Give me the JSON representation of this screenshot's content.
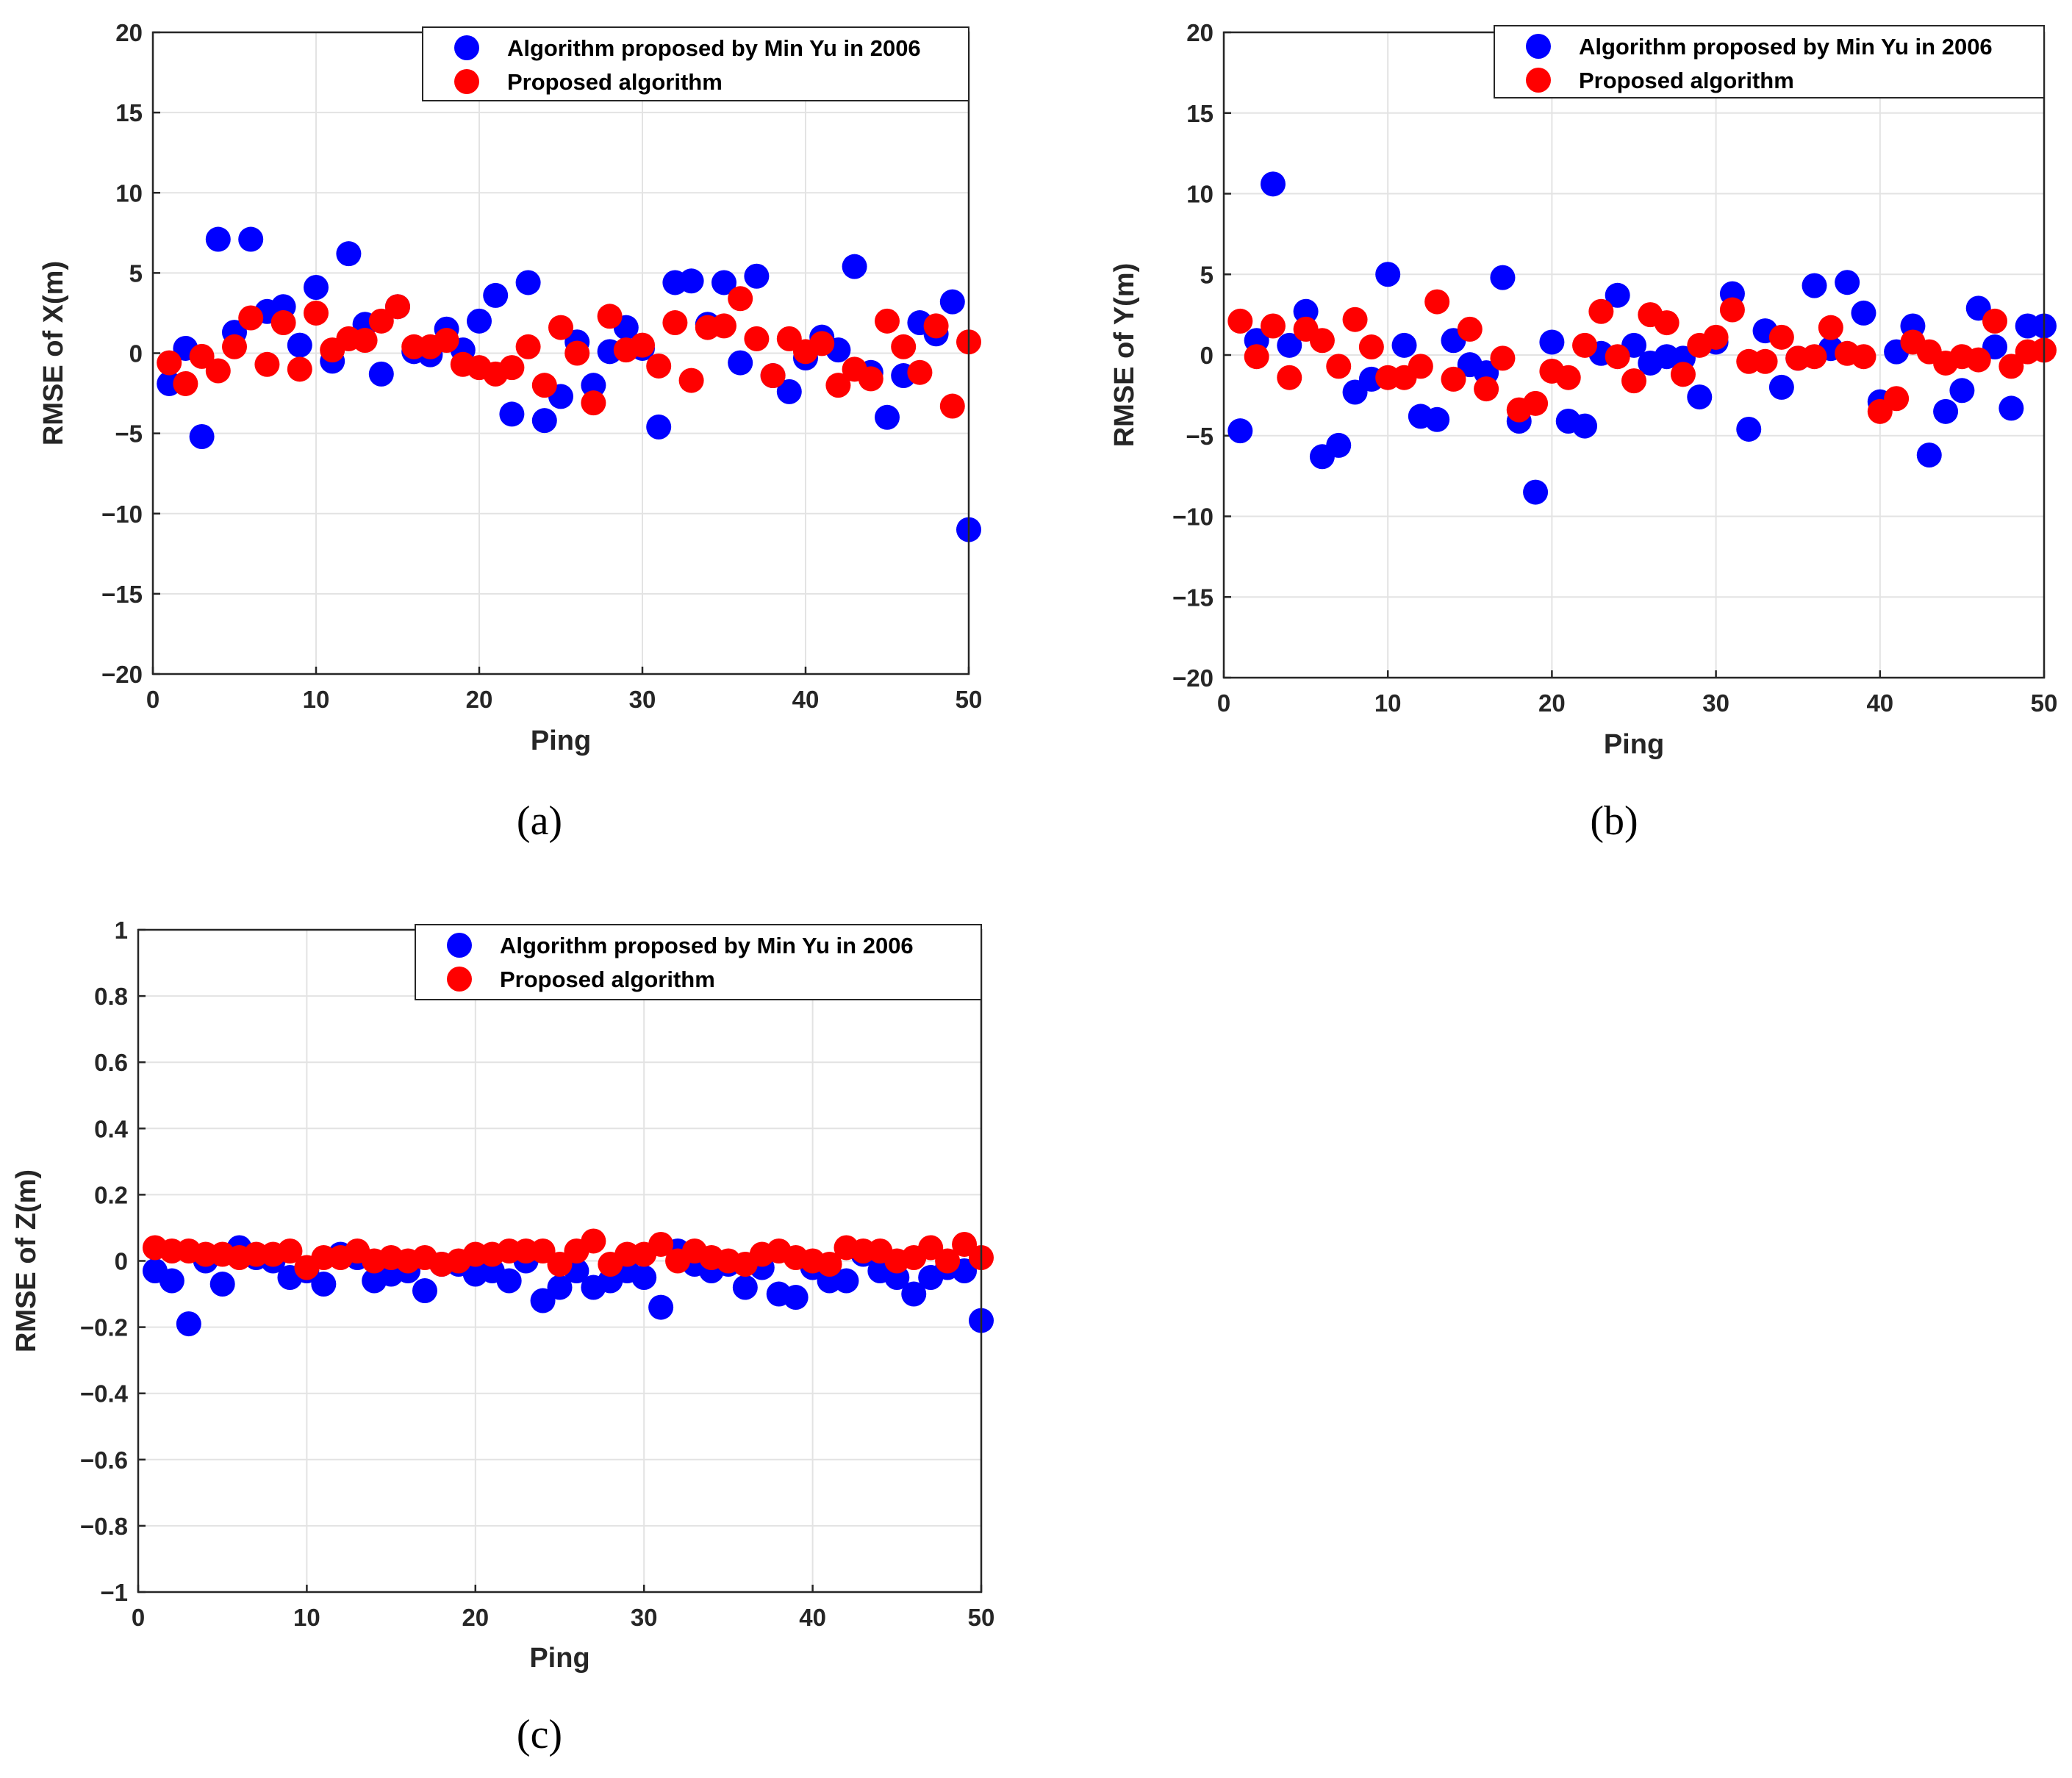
{
  "chart_data": [
    {
      "id": "a",
      "type": "scatter",
      "caption": "(a)",
      "xlabel": "Ping",
      "ylabel": "RMSE of X(m)",
      "xlim": [
        0,
        50
      ],
      "ylim": [
        -20,
        20
      ],
      "xticks": [
        0,
        10,
        20,
        30,
        40,
        50
      ],
      "yticks": [
        -20,
        -15,
        -10,
        -5,
        0,
        5,
        10,
        15,
        20
      ],
      "ytick_labels": [
        "−20",
        "−15",
        "−10",
        "−5",
        "0",
        "5",
        "10",
        "15",
        "20"
      ],
      "grid": true,
      "legend_position": "top-right",
      "series": [
        {
          "name": "Algorithm proposed by Min Yu in 2006",
          "color": "#0000ff",
          "x": [
            1,
            2,
            3,
            4,
            5,
            6,
            7,
            8,
            9,
            10,
            11,
            12,
            13,
            14,
            15,
            16,
            17,
            18,
            19,
            20,
            21,
            22,
            23,
            24,
            25,
            26,
            27,
            28,
            29,
            30,
            31,
            32,
            33,
            34,
            35,
            36,
            37,
            38,
            39,
            40,
            41,
            42,
            43,
            44,
            45,
            46,
            47,
            48,
            49,
            50
          ],
          "values": [
            -1.9,
            0.3,
            -5.2,
            7.1,
            1.3,
            7.1,
            2.6,
            2.9,
            0.5,
            4.1,
            -0.5,
            6.2,
            1.8,
            -1.3,
            2.9,
            0.1,
            -0.1,
            1.5,
            0.2,
            2.0,
            3.6,
            -3.8,
            4.4,
            -4.2,
            -2.7,
            0.7,
            -2.0,
            0.1,
            1.6,
            0.3,
            -4.6,
            4.4,
            4.5,
            1.8,
            4.4,
            -0.6,
            4.8,
            -1.4,
            -2.4,
            -0.3,
            1.0,
            0.2,
            5.4,
            -1.2,
            -4.0,
            -1.4,
            1.9,
            1.2,
            3.2,
            -11.0
          ]
        },
        {
          "name": "Proposed algorithm",
          "color": "#ff0000",
          "x": [
            1,
            2,
            3,
            4,
            5,
            6,
            7,
            8,
            9,
            10,
            11,
            12,
            13,
            14,
            15,
            16,
            17,
            18,
            19,
            20,
            21,
            22,
            23,
            24,
            25,
            26,
            27,
            28,
            29,
            30,
            31,
            32,
            33,
            34,
            35,
            36,
            37,
            38,
            39,
            40,
            41,
            42,
            43,
            44,
            45,
            46,
            47,
            48,
            49,
            50
          ],
          "values": [
            -0.6,
            -1.9,
            -0.2,
            -1.1,
            0.4,
            2.2,
            -0.7,
            1.9,
            -1.0,
            2.5,
            0.2,
            0.9,
            0.8,
            2.0,
            2.9,
            0.4,
            0.4,
            0.8,
            -0.7,
            -0.9,
            -1.3,
            -0.9,
            0.4,
            -2.0,
            1.6,
            0.0,
            -3.1,
            2.3,
            0.2,
            0.5,
            -0.8,
            1.9,
            -1.7,
            1.6,
            1.7,
            3.4,
            0.9,
            -1.4,
            0.9,
            0.1,
            0.6,
            -2.0,
            -1.0,
            -1.6,
            2.0,
            0.4,
            -1.2,
            1.7,
            -3.3,
            0.7
          ]
        }
      ]
    },
    {
      "id": "b",
      "type": "scatter",
      "caption": "(b)",
      "xlabel": "Ping",
      "ylabel": "RMSE of Y(m)",
      "xlim": [
        0,
        50
      ],
      "ylim": [
        -20,
        20
      ],
      "xticks": [
        0,
        10,
        20,
        30,
        40,
        50
      ],
      "yticks": [
        -20,
        -15,
        -10,
        -5,
        0,
        5,
        10,
        15,
        20
      ],
      "ytick_labels": [
        "−20",
        "−15",
        "−10",
        "−5",
        "0",
        "5",
        "10",
        "15",
        "20"
      ],
      "grid": true,
      "legend_position": "top-right",
      "series": [
        {
          "name": "Algorithm proposed by Min Yu in 2006",
          "color": "#0000ff",
          "x": [
            1,
            2,
            3,
            4,
            5,
            6,
            7,
            8,
            9,
            10,
            11,
            12,
            13,
            14,
            15,
            16,
            17,
            18,
            19,
            20,
            21,
            22,
            23,
            24,
            25,
            26,
            27,
            28,
            29,
            30,
            31,
            32,
            33,
            34,
            35,
            36,
            37,
            38,
            39,
            40,
            41,
            42,
            43,
            44,
            45,
            46,
            47,
            48,
            49,
            50
          ],
          "values": [
            -4.7,
            0.9,
            10.6,
            0.6,
            2.7,
            -6.3,
            -5.6,
            -2.3,
            -1.5,
            5.0,
            0.6,
            -3.8,
            -4.0,
            0.9,
            -0.6,
            -1.1,
            4.8,
            -4.1,
            -8.5,
            0.8,
            -4.1,
            -4.4,
            0.1,
            3.7,
            0.6,
            -0.5,
            -0.1,
            -0.2,
            -2.6,
            0.8,
            3.8,
            -4.6,
            1.5,
            -2.0,
            -0.2,
            4.3,
            0.4,
            4.5,
            2.6,
            -2.9,
            0.2,
            1.8,
            -6.2,
            -3.5,
            -2.2,
            2.9,
            0.5,
            -3.3,
            1.8,
            1.8
          ]
        },
        {
          "name": "Proposed algorithm",
          "color": "#ff0000",
          "x": [
            1,
            2,
            3,
            4,
            5,
            6,
            7,
            8,
            9,
            10,
            11,
            12,
            13,
            14,
            15,
            16,
            17,
            18,
            19,
            20,
            21,
            22,
            23,
            24,
            25,
            26,
            27,
            28,
            29,
            30,
            31,
            32,
            33,
            34,
            35,
            36,
            37,
            38,
            39,
            40,
            41,
            42,
            43,
            44,
            45,
            46,
            47,
            48,
            49,
            50
          ],
          "values": [
            2.1,
            -0.1,
            1.8,
            -1.4,
            1.6,
            0.9,
            -0.7,
            2.2,
            0.5,
            -1.4,
            -1.4,
            -0.7,
            3.3,
            -1.5,
            1.6,
            -2.1,
            -0.2,
            -3.4,
            -3.0,
            -1.0,
            -1.4,
            0.6,
            2.7,
            -0.1,
            -1.6,
            2.5,
            2.0,
            -1.2,
            0.6,
            1.1,
            2.8,
            -0.4,
            -0.4,
            1.1,
            -0.2,
            -0.1,
            1.7,
            0.1,
            -0.1,
            -3.5,
            -2.7,
            0.8,
            0.2,
            -0.5,
            -0.1,
            -0.3,
            2.1,
            -0.7,
            0.2,
            0.3
          ]
        }
      ]
    },
    {
      "id": "c",
      "type": "scatter",
      "caption": "(c)",
      "xlabel": "Ping",
      "ylabel": "RMSE of Z(m)",
      "xlim": [
        0,
        50
      ],
      "ylim": [
        -1,
        1
      ],
      "xticks": [
        0,
        10,
        20,
        30,
        40,
        50
      ],
      "yticks": [
        -1,
        -0.8,
        -0.6,
        -0.4,
        -0.2,
        0,
        0.2,
        0.4,
        0.6,
        0.8,
        1
      ],
      "ytick_labels": [
        "−1",
        "−0.8",
        "−0.6",
        "−0.4",
        "−0.2",
        "0",
        "0.2",
        "0.4",
        "0.6",
        "0.8",
        "1"
      ],
      "grid": true,
      "legend_position": "top-right",
      "series": [
        {
          "name": "Algorithm proposed by Min Yu in 2006",
          "color": "#0000ff",
          "x": [
            1,
            2,
            3,
            4,
            5,
            6,
            7,
            8,
            9,
            10,
            11,
            12,
            13,
            14,
            15,
            16,
            17,
            18,
            19,
            20,
            21,
            22,
            23,
            24,
            25,
            26,
            27,
            28,
            29,
            30,
            31,
            32,
            33,
            34,
            35,
            36,
            37,
            38,
            39,
            40,
            41,
            42,
            43,
            44,
            45,
            46,
            47,
            48,
            49,
            50
          ],
          "values": [
            -0.03,
            -0.06,
            -0.19,
            0.0,
            -0.07,
            0.04,
            0.01,
            0.0,
            -0.05,
            -0.03,
            -0.07,
            0.02,
            0.01,
            -0.06,
            -0.04,
            -0.03,
            -0.09,
            -0.01,
            -0.01,
            -0.04,
            -0.03,
            -0.06,
            0.0,
            -0.12,
            -0.08,
            -0.03,
            -0.08,
            -0.06,
            -0.03,
            -0.05,
            -0.14,
            0.03,
            -0.01,
            -0.03,
            -0.01,
            -0.08,
            -0.02,
            -0.1,
            -0.11,
            -0.02,
            -0.06,
            -0.06,
            0.02,
            -0.03,
            -0.05,
            -0.1,
            -0.05,
            -0.02,
            -0.03,
            -0.18
          ]
        },
        {
          "name": "Proposed algorithm",
          "color": "#ff0000",
          "x": [
            1,
            2,
            3,
            4,
            5,
            6,
            7,
            8,
            9,
            10,
            11,
            12,
            13,
            14,
            15,
            16,
            17,
            18,
            19,
            20,
            21,
            22,
            23,
            24,
            25,
            26,
            27,
            28,
            29,
            30,
            31,
            32,
            33,
            34,
            35,
            36,
            37,
            38,
            39,
            40,
            41,
            42,
            43,
            44,
            45,
            46,
            47,
            48,
            49,
            50
          ],
          "values": [
            0.04,
            0.03,
            0.03,
            0.02,
            0.02,
            0.01,
            0.02,
            0.02,
            0.03,
            -0.02,
            0.01,
            0.01,
            0.03,
            0.0,
            0.01,
            0.0,
            0.01,
            -0.01,
            0.0,
            0.02,
            0.02,
            0.03,
            0.03,
            0.03,
            -0.01,
            0.03,
            0.06,
            -0.01,
            0.02,
            0.02,
            0.05,
            0.0,
            0.03,
            0.01,
            0.0,
            -0.01,
            0.02,
            0.03,
            0.01,
            0.0,
            -0.01,
            0.04,
            0.03,
            0.03,
            0.0,
            0.01,
            0.04,
            0.0,
            0.05,
            0.01
          ]
        }
      ]
    }
  ]
}
